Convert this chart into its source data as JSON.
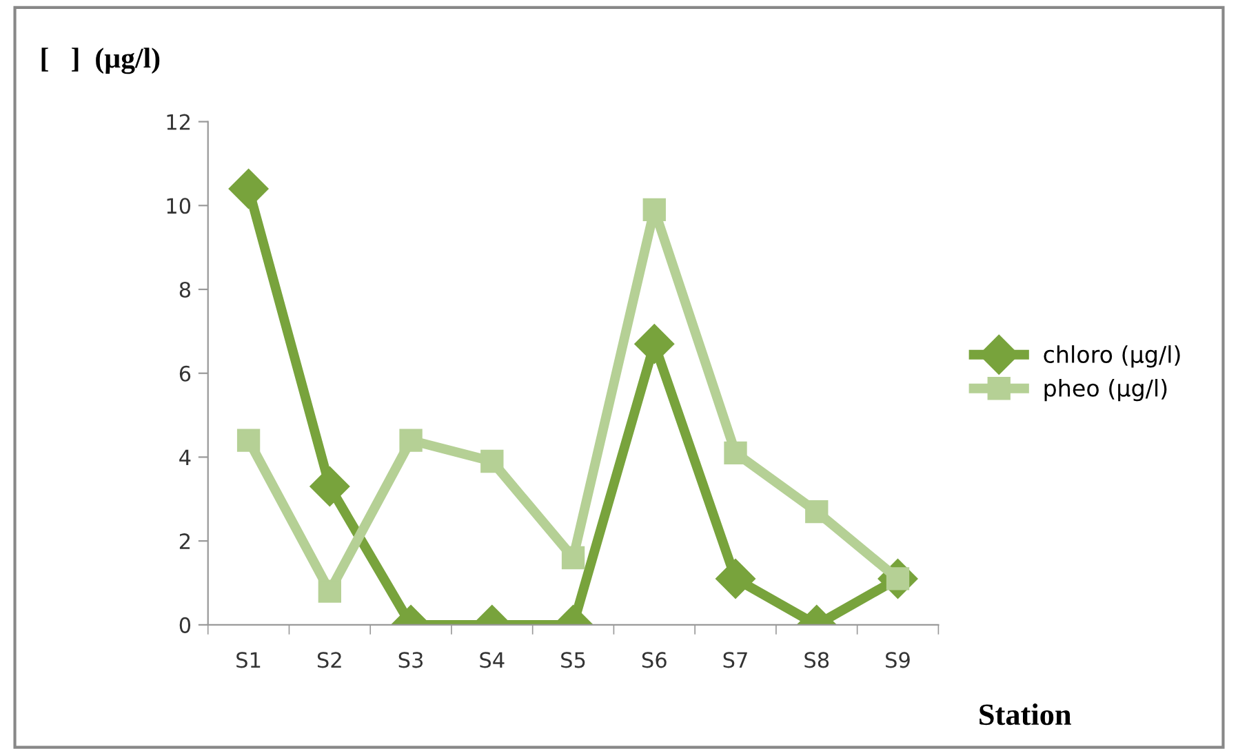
{
  "chart_data": {
    "type": "line",
    "ylabel": "[   ]  (µg/l)",
    "xlabel": "Station",
    "categories": [
      "S1",
      "S2",
      "S3",
      "S4",
      "S5",
      "S6",
      "S7",
      "S8",
      "S9"
    ],
    "series": [
      {
        "name": "chloro (µg/l)",
        "color": "#78a33c",
        "marker": "diamond",
        "values": [
          10.4,
          3.3,
          0,
          0,
          0,
          6.7,
          1.1,
          0,
          1.1
        ]
      },
      {
        "name": "pheo (µg/l)",
        "color": "#b5d095",
        "marker": "square",
        "values": [
          4.4,
          0.8,
          4.4,
          3.9,
          1.6,
          9.9,
          4.1,
          2.7,
          1.1
        ]
      }
    ],
    "ylim": [
      0,
      12
    ],
    "yticks": [
      0,
      2,
      4,
      6,
      8,
      10,
      12
    ],
    "grid": false,
    "legend": "right"
  }
}
